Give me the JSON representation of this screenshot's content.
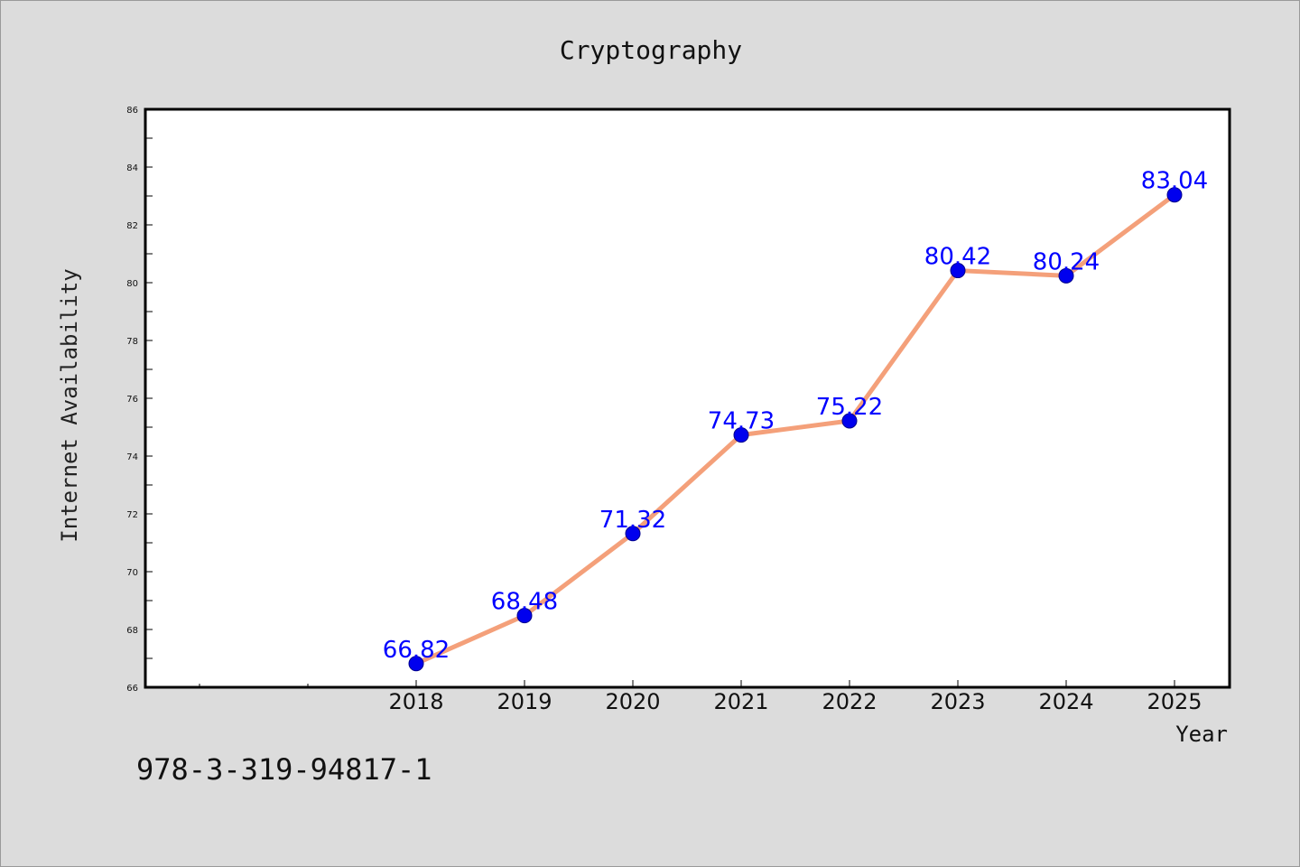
{
  "chart_data": {
    "type": "line",
    "title": "Cryptography",
    "xlabel": "Year",
    "ylabel": "Internet Availability",
    "categories": [
      "2018",
      "2019",
      "2020",
      "2021",
      "2022",
      "2023",
      "2024",
      "2025"
    ],
    "values": [
      66.82,
      68.48,
      71.32,
      74.73,
      75.22,
      80.42,
      80.24,
      83.04
    ],
    "data_labels": [
      "66.82",
      "68.48",
      "71.32",
      "74.73",
      "75.22",
      "80.42",
      "80.24",
      "83.04"
    ],
    "ylim": [
      66,
      86
    ],
    "yticks": [
      "66",
      "68",
      "70",
      "72",
      "74",
      "76",
      "78",
      "80",
      "82",
      "84",
      "86"
    ],
    "grid": false,
    "line_color": "#f4a07a",
    "marker_color": "#0000ee",
    "label_color": "#0000ff"
  },
  "footer": {
    "code": "978-3-319-94817-1"
  }
}
